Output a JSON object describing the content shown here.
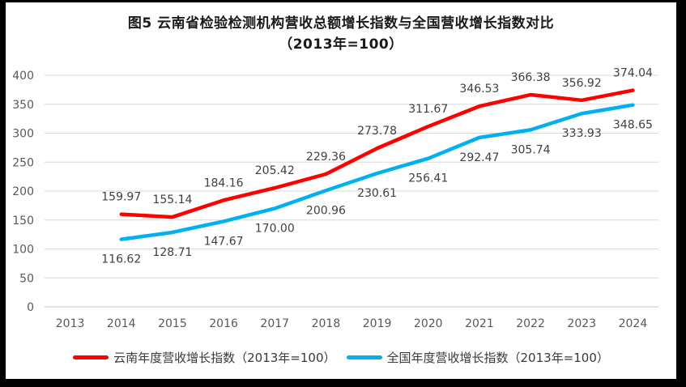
{
  "window": {
    "frame_color": "#000000",
    "background": "#FFFFFF"
  },
  "title": {
    "line1": "图5  云南省检验检测机构营收总额增长指数与全国营收增长指数对比",
    "line2": "（2013年=100）"
  },
  "chart_data": {
    "type": "line",
    "title": "图5 云南省检验检测机构营收总额增长指数与全国营收增长指数对比（2013年=100）",
    "categories": [
      "2013",
      "2014",
      "2015",
      "2016",
      "2017",
      "2018",
      "2019",
      "2020",
      "2021",
      "2022",
      "2023",
      "2024"
    ],
    "series": [
      {
        "name": "云南年度营收增长指数（2013年=100）",
        "color": "#FF0000",
        "values": [
          null,
          159.97,
          155.14,
          184.16,
          205.42,
          229.36,
          273.78,
          311.67,
          346.53,
          366.38,
          356.92,
          374.04
        ],
        "data_label_position": "above"
      },
      {
        "name": "全国年度营收增长指数（2013年=100）",
        "color": "#00B0F0",
        "values": [
          null,
          116.62,
          128.71,
          147.67,
          170.0,
          200.96,
          230.61,
          256.41,
          292.47,
          305.74,
          333.93,
          348.65
        ],
        "data_label_position": "below"
      }
    ],
    "ylim": [
      0,
      400
    ],
    "yticks": [
      0,
      50,
      100,
      150,
      200,
      250,
      300,
      350,
      400
    ],
    "xlabel": "",
    "ylabel": "",
    "grid": "horizontal",
    "legend_position": "bottom",
    "data_labels_decimals": 2,
    "colors": {
      "gridline": "#D9D9D9",
      "axis_line": "#C6C6C6",
      "tick_label": "#595959",
      "data_label": "#404040"
    }
  }
}
